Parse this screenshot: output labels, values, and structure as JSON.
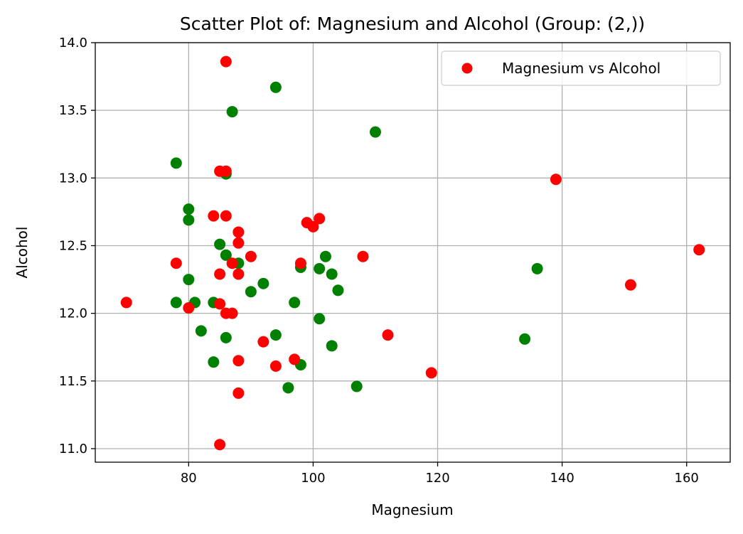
{
  "chart_data": {
    "type": "scatter",
    "title": "Scatter Plot of: Magnesium and Alcohol (Group: (2,))",
    "xlabel": "Magnesium",
    "ylabel": "Alcohol",
    "xlim": [
      65,
      167
    ],
    "ylim": [
      10.9,
      14.0
    ],
    "xticks": [
      80,
      100,
      120,
      140,
      160
    ],
    "yticks": [
      11.0,
      11.5,
      12.0,
      12.5,
      13.0,
      13.5,
      14.0
    ],
    "grid": true,
    "legend": {
      "position": "top-right",
      "entries": [
        "Magnesium vs Alcohol"
      ]
    },
    "colors": {
      "a": "#008000",
      "b": "#ff0000"
    },
    "series": [
      {
        "color_key": "a",
        "points": [
          [
            94,
            13.67
          ],
          [
            87,
            13.49
          ],
          [
            110,
            13.34
          ],
          [
            78,
            13.11
          ],
          [
            86,
            13.03
          ],
          [
            80,
            12.77
          ],
          [
            80,
            12.69
          ],
          [
            85,
            12.51
          ],
          [
            86,
            12.43
          ],
          [
            88,
            12.37
          ],
          [
            102,
            12.42
          ],
          [
            98,
            12.34
          ],
          [
            101,
            12.33
          ],
          [
            103,
            12.29
          ],
          [
            136,
            12.33
          ],
          [
            80,
            12.25
          ],
          [
            92,
            12.22
          ],
          [
            90,
            12.16
          ],
          [
            104,
            12.17
          ],
          [
            78,
            12.08
          ],
          [
            81,
            12.08
          ],
          [
            84,
            12.08
          ],
          [
            97,
            12.08
          ],
          [
            101,
            11.96
          ],
          [
            82,
            11.87
          ],
          [
            86,
            11.82
          ],
          [
            94,
            11.84
          ],
          [
            134,
            11.81
          ],
          [
            84,
            11.64
          ],
          [
            98,
            11.62
          ],
          [
            103,
            11.76
          ],
          [
            96,
            11.45
          ],
          [
            107,
            11.46
          ]
        ]
      },
      {
        "color_key": "b",
        "points": [
          [
            86,
            13.86
          ],
          [
            85,
            13.05
          ],
          [
            86,
            13.05
          ],
          [
            139,
            12.99
          ],
          [
            84,
            12.72
          ],
          [
            86,
            12.72
          ],
          [
            101,
            12.7
          ],
          [
            99,
            12.67
          ],
          [
            100,
            12.64
          ],
          [
            88,
            12.6
          ],
          [
            88,
            12.52
          ],
          [
            162,
            12.47
          ],
          [
            90,
            12.42
          ],
          [
            108,
            12.42
          ],
          [
            78,
            12.37
          ],
          [
            87,
            12.37
          ],
          [
            98,
            12.37
          ],
          [
            85,
            12.29
          ],
          [
            88,
            12.29
          ],
          [
            151,
            12.21
          ],
          [
            70,
            12.08
          ],
          [
            85,
            12.07
          ],
          [
            80,
            12.04
          ],
          [
            86,
            12.0
          ],
          [
            87,
            12.0
          ],
          [
            112,
            11.84
          ],
          [
            92,
            11.79
          ],
          [
            97,
            11.66
          ],
          [
            88,
            11.65
          ],
          [
            94,
            11.61
          ],
          [
            119,
            11.56
          ],
          [
            88,
            11.41
          ],
          [
            85,
            11.03
          ]
        ]
      }
    ]
  }
}
